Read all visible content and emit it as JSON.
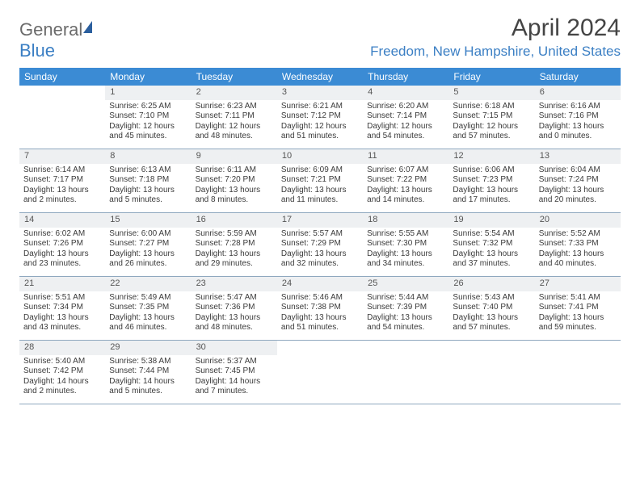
{
  "logo": {
    "text_a": "General",
    "text_b": "Blue"
  },
  "title": "April 2024",
  "location": "Freedom, New Hampshire, United States",
  "colors": {
    "header_bg": "#3b8bd4",
    "header_text": "#ffffff",
    "daynum_bg": "#eef0f2",
    "rule": "#8fa8bf",
    "accent": "#3b7fc4"
  },
  "dow": [
    "Sunday",
    "Monday",
    "Tuesday",
    "Wednesday",
    "Thursday",
    "Friday",
    "Saturday"
  ],
  "first_weekday_offset": 1,
  "days": [
    {
      "n": 1,
      "sr": "6:25 AM",
      "ss": "7:10 PM",
      "dl": "12 hours and 45 minutes."
    },
    {
      "n": 2,
      "sr": "6:23 AM",
      "ss": "7:11 PM",
      "dl": "12 hours and 48 minutes."
    },
    {
      "n": 3,
      "sr": "6:21 AM",
      "ss": "7:12 PM",
      "dl": "12 hours and 51 minutes."
    },
    {
      "n": 4,
      "sr": "6:20 AM",
      "ss": "7:14 PM",
      "dl": "12 hours and 54 minutes."
    },
    {
      "n": 5,
      "sr": "6:18 AM",
      "ss": "7:15 PM",
      "dl": "12 hours and 57 minutes."
    },
    {
      "n": 6,
      "sr": "6:16 AM",
      "ss": "7:16 PM",
      "dl": "13 hours and 0 minutes."
    },
    {
      "n": 7,
      "sr": "6:14 AM",
      "ss": "7:17 PM",
      "dl": "13 hours and 2 minutes."
    },
    {
      "n": 8,
      "sr": "6:13 AM",
      "ss": "7:18 PM",
      "dl": "13 hours and 5 minutes."
    },
    {
      "n": 9,
      "sr": "6:11 AM",
      "ss": "7:20 PM",
      "dl": "13 hours and 8 minutes."
    },
    {
      "n": 10,
      "sr": "6:09 AM",
      "ss": "7:21 PM",
      "dl": "13 hours and 11 minutes."
    },
    {
      "n": 11,
      "sr": "6:07 AM",
      "ss": "7:22 PM",
      "dl": "13 hours and 14 minutes."
    },
    {
      "n": 12,
      "sr": "6:06 AM",
      "ss": "7:23 PM",
      "dl": "13 hours and 17 minutes."
    },
    {
      "n": 13,
      "sr": "6:04 AM",
      "ss": "7:24 PM",
      "dl": "13 hours and 20 minutes."
    },
    {
      "n": 14,
      "sr": "6:02 AM",
      "ss": "7:26 PM",
      "dl": "13 hours and 23 minutes."
    },
    {
      "n": 15,
      "sr": "6:00 AM",
      "ss": "7:27 PM",
      "dl": "13 hours and 26 minutes."
    },
    {
      "n": 16,
      "sr": "5:59 AM",
      "ss": "7:28 PM",
      "dl": "13 hours and 29 minutes."
    },
    {
      "n": 17,
      "sr": "5:57 AM",
      "ss": "7:29 PM",
      "dl": "13 hours and 32 minutes."
    },
    {
      "n": 18,
      "sr": "5:55 AM",
      "ss": "7:30 PM",
      "dl": "13 hours and 34 minutes."
    },
    {
      "n": 19,
      "sr": "5:54 AM",
      "ss": "7:32 PM",
      "dl": "13 hours and 37 minutes."
    },
    {
      "n": 20,
      "sr": "5:52 AM",
      "ss": "7:33 PM",
      "dl": "13 hours and 40 minutes."
    },
    {
      "n": 21,
      "sr": "5:51 AM",
      "ss": "7:34 PM",
      "dl": "13 hours and 43 minutes."
    },
    {
      "n": 22,
      "sr": "5:49 AM",
      "ss": "7:35 PM",
      "dl": "13 hours and 46 minutes."
    },
    {
      "n": 23,
      "sr": "5:47 AM",
      "ss": "7:36 PM",
      "dl": "13 hours and 48 minutes."
    },
    {
      "n": 24,
      "sr": "5:46 AM",
      "ss": "7:38 PM",
      "dl": "13 hours and 51 minutes."
    },
    {
      "n": 25,
      "sr": "5:44 AM",
      "ss": "7:39 PM",
      "dl": "13 hours and 54 minutes."
    },
    {
      "n": 26,
      "sr": "5:43 AM",
      "ss": "7:40 PM",
      "dl": "13 hours and 57 minutes."
    },
    {
      "n": 27,
      "sr": "5:41 AM",
      "ss": "7:41 PM",
      "dl": "13 hours and 59 minutes."
    },
    {
      "n": 28,
      "sr": "5:40 AM",
      "ss": "7:42 PM",
      "dl": "14 hours and 2 minutes."
    },
    {
      "n": 29,
      "sr": "5:38 AM",
      "ss": "7:44 PM",
      "dl": "14 hours and 5 minutes."
    },
    {
      "n": 30,
      "sr": "5:37 AM",
      "ss": "7:45 PM",
      "dl": "14 hours and 7 minutes."
    }
  ],
  "labels": {
    "sunrise": "Sunrise:",
    "sunset": "Sunset:",
    "daylight": "Daylight:"
  }
}
